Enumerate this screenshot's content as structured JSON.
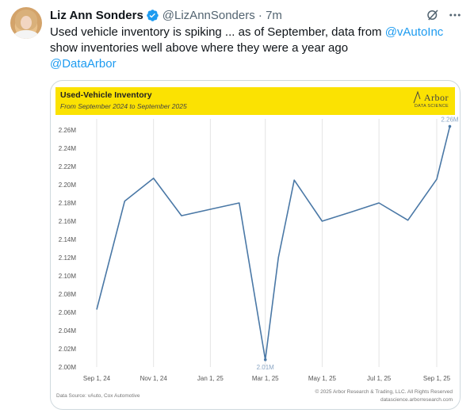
{
  "tweet": {
    "author_name": "Liz Ann Sonders",
    "handle": "@LizAnnSonders · 7m",
    "text_part1": "Used vehicle inventory is spiking ... as of September, data from ",
    "mention1": "@vAutoInc",
    "text_part2": " show inventories well above where they were a year ago",
    "mention2": "@DataArbor"
  },
  "icons": {
    "verified": "verified-badge-icon",
    "grok": "grok-icon",
    "more": "more-icon"
  },
  "colors": {
    "accent": "#1d9bf0",
    "banner": "#fbe202",
    "line": "#4a78a6"
  },
  "chart_card": {
    "banner_title": "Used-Vehicle Inventory",
    "banner_subtitle": "From September 2024 to September 2025",
    "logo_word": "Arbor",
    "logo_sub": "DATA SCIENCE",
    "source": "Data Source: vAuto, Cox Automotive",
    "copyright_line1": "© 2025 Arbor Research & Trading, LLC. All Rights Reserved",
    "copyright_line2": "datascience.arborresearch.com"
  },
  "chart_data": {
    "type": "line",
    "title": "Used-Vehicle Inventory",
    "subtitle": "From September 2024 to September 2025",
    "x_tick_labels": [
      "Sep 1, 24",
      "Nov 1, 24",
      "Jan 1, 25",
      "Mar 1, 25",
      "May 1, 25",
      "Jul 1, 25",
      "Sep 1, 25"
    ],
    "y_tick_labels": [
      "2.00M",
      "2.02M",
      "2.04M",
      "2.06M",
      "2.08M",
      "2.10M",
      "2.12M",
      "2.14M",
      "2.16M",
      "2.18M",
      "2.20M",
      "2.22M",
      "2.24M",
      "2.26M"
    ],
    "ylim": [
      2.0,
      2.26
    ],
    "grid": "vertical",
    "annotations": [
      {
        "label": "2.26M",
        "date": "2025-09-15"
      },
      {
        "label": "2.01M",
        "date": "2025-03-01"
      }
    ],
    "series": [
      {
        "points": [
          {
            "date": "2024-09-01",
            "value": 2.063
          },
          {
            "date": "2024-10-01",
            "value": 2.182
          },
          {
            "date": "2024-11-01",
            "value": 2.207
          },
          {
            "date": "2024-12-01",
            "value": 2.166
          },
          {
            "date": "2025-01-01",
            "value": 2.173
          },
          {
            "date": "2025-02-01",
            "value": 2.18
          },
          {
            "date": "2025-03-01",
            "value": 2.008
          },
          {
            "date": "2025-03-15",
            "value": 2.12
          },
          {
            "date": "2025-04-01",
            "value": 2.205
          },
          {
            "date": "2025-05-01",
            "value": 2.16
          },
          {
            "date": "2025-06-01",
            "value": 2.17
          },
          {
            "date": "2025-07-01",
            "value": 2.18
          },
          {
            "date": "2025-08-01",
            "value": 2.161
          },
          {
            "date": "2025-09-01",
            "value": 2.206
          },
          {
            "date": "2025-09-15",
            "value": 2.264
          }
        ]
      }
    ]
  }
}
